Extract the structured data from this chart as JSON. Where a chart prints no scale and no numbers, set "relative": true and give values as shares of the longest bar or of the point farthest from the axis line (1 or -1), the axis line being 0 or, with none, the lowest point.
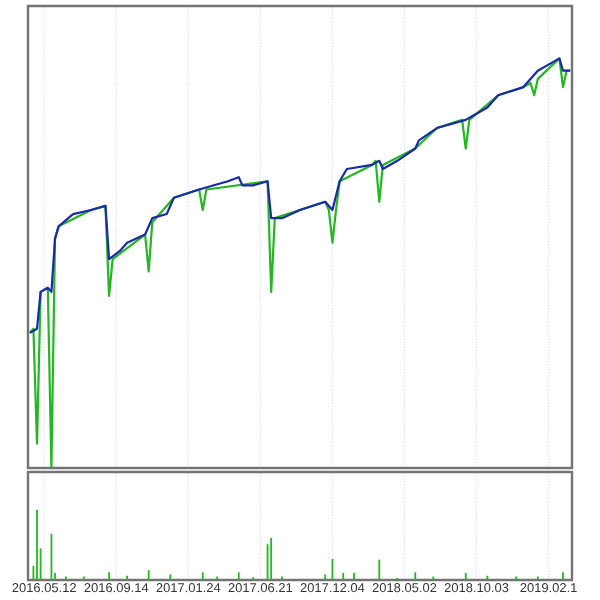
{
  "chart_data": [
    {
      "type": "line",
      "relative": true,
      "tick_labels": false,
      "grid": "x",
      "categories": [
        null,
        null,
        null,
        null,
        "2016.05.12",
        null,
        null,
        null,
        null,
        null,
        null,
        null,
        null,
        null,
        null,
        null,
        null,
        null,
        null,
        null,
        null,
        null,
        null,
        null,
        "2016.09.14",
        null,
        null,
        null,
        null,
        null,
        null,
        null,
        null,
        null,
        null,
        null,
        null,
        null,
        null,
        null,
        null,
        null,
        null,
        null,
        "2017.01.24",
        null,
        null,
        null,
        null,
        null,
        null,
        null,
        null,
        null,
        null,
        null,
        null,
        null,
        null,
        null,
        null,
        null,
        null,
        null,
        "2017.06.21",
        null,
        null,
        null,
        null,
        null,
        null,
        null,
        null,
        null,
        null,
        null,
        null,
        null,
        null,
        null,
        null,
        null,
        null,
        null,
        "2017.12.04",
        null,
        null,
        null,
        null,
        null,
        null,
        null,
        null,
        null,
        null,
        null,
        null,
        null,
        null,
        null,
        null,
        null,
        null,
        null,
        "2018.05.02",
        null,
        null,
        null,
        null,
        null,
        null,
        null,
        null,
        null,
        null,
        null,
        null,
        null,
        null,
        null,
        null,
        null,
        null,
        null,
        "2018.10.03",
        null,
        null,
        null,
        null,
        null,
        null,
        null,
        null,
        null,
        null,
        null,
        null,
        null,
        null,
        null,
        null,
        null,
        null,
        null,
        "2019.02.1",
        null,
        null,
        null,
        null,
        null,
        null
      ],
      "series": [
        {
          "color": "#22b822",
          "values": [
            0.33,
            0.34,
            0.06,
            0.43,
            null,
            0.44,
            0,
            0.56,
            0.59,
            null,
            null,
            null,
            null,
            null,
            null,
            null,
            null,
            0.63,
            null,
            null,
            null,
            0.64,
            0.42,
            0.51,
            null,
            null,
            null,
            null,
            null,
            null,
            null,
            null,
            0.57,
            0.48,
            0.6,
            null,
            null,
            null,
            null,
            null,
            0.66,
            null,
            null,
            null,
            null,
            null,
            null,
            0.68,
            0.63,
            0.68,
            null,
            null,
            null,
            null,
            null,
            null,
            null,
            null,
            null,
            null,
            null,
            null,
            null,
            null,
            null,
            null,
            0.7,
            0.43,
            0.61,
            null,
            null,
            null,
            null,
            null,
            null,
            null,
            null,
            null,
            null,
            null,
            null,
            null,
            0.65,
            0.63,
            0.55,
            0.63,
            0.7,
            null,
            null,
            null,
            null,
            null,
            null,
            null,
            null,
            0.74,
            0.75,
            0.65,
            0.74,
            null,
            null,
            null,
            null,
            null,
            null,
            null,
            null,
            0.78,
            null,
            null,
            null,
            null,
            null,
            0.83,
            null,
            null,
            null,
            null,
            null,
            null,
            0.85,
            0.78,
            0.85,
            null,
            null,
            null,
            null,
            null,
            null,
            null,
            0.91,
            null,
            null,
            null,
            null,
            null,
            null,
            0.93,
            null,
            0.94,
            0.91,
            0.95,
            null,
            null,
            null,
            null,
            null,
            1.0,
            0.93,
            0.97,
            0.97
          ]
        },
        {
          "color": "#1c2aa8",
          "values": [
            0.33,
            null,
            0.34,
            0.43,
            null,
            0.44,
            0.43,
            0.56,
            0.59,
            null,
            null,
            null,
            0.62,
            null,
            null,
            null,
            null,
            0.63,
            null,
            null,
            null,
            0.64,
            0.51,
            null,
            null,
            0.53,
            null,
            0.55,
            null,
            null,
            null,
            null,
            0.57,
            null,
            0.61,
            null,
            null,
            null,
            0.62,
            null,
            0.66,
            null,
            null,
            null,
            null,
            null,
            null,
            0.68,
            null,
            null,
            null,
            null,
            null,
            null,
            null,
            0.7,
            null,
            null,
            0.71,
            0.69,
            null,
            null,
            0.69,
            null,
            null,
            null,
            0.7,
            0.61,
            null,
            null,
            0.61,
            null,
            null,
            null,
            null,
            0.63,
            null,
            null,
            null,
            null,
            null,
            null,
            0.65,
            null,
            0.63,
            null,
            0.7,
            null,
            0.73,
            null,
            null,
            null,
            null,
            null,
            null,
            0.74,
            null,
            0.75,
            0.73,
            null,
            null,
            null,
            0.75,
            null,
            null,
            null,
            null,
            0.78,
            0.8,
            null,
            null,
            null,
            null,
            0.83,
            null,
            null,
            null,
            null,
            null,
            null,
            null,
            0.85,
            null,
            0.86,
            null,
            null,
            null,
            0.88,
            null,
            null,
            0.91,
            null,
            null,
            null,
            null,
            null,
            null,
            0.93,
            null,
            null,
            null,
            0.97,
            null,
            null,
            null,
            null,
            null,
            1.0,
            0.97,
            null,
            0.97
          ]
        }
      ]
    },
    {
      "type": "bar",
      "relative": true,
      "tick_labels": "x",
      "grid": "x",
      "color": "#22b822",
      "categories": [
        null,
        null,
        null,
        null,
        "2016.05.12",
        null,
        null,
        null,
        null,
        null,
        null,
        null,
        null,
        null,
        null,
        null,
        null,
        null,
        null,
        null,
        null,
        null,
        null,
        null,
        "2016.09.14",
        null,
        null,
        null,
        null,
        null,
        null,
        null,
        null,
        null,
        null,
        null,
        null,
        null,
        null,
        null,
        null,
        null,
        null,
        null,
        "2017.01.24",
        null,
        null,
        null,
        null,
        null,
        null,
        null,
        null,
        null,
        null,
        null,
        null,
        null,
        null,
        null,
        null,
        null,
        null,
        null,
        "2017.06.21",
        null,
        null,
        null,
        null,
        null,
        null,
        null,
        null,
        null,
        null,
        null,
        null,
        null,
        null,
        null,
        null,
        null,
        null,
        null,
        "2017.12.04",
        null,
        null,
        null,
        null,
        null,
        null,
        null,
        null,
        null,
        null,
        null,
        null,
        null,
        null,
        null,
        null,
        null,
        null,
        null,
        "2018.05.02",
        null,
        null,
        null,
        null,
        null,
        null,
        null,
        null,
        null,
        null,
        null,
        null,
        null,
        null,
        null,
        null,
        null,
        null,
        null,
        "2018.10.03",
        null,
        null,
        null,
        null,
        null,
        null,
        null,
        null,
        null,
        null,
        null,
        null,
        null,
        null,
        null,
        null,
        null,
        null,
        null,
        "2019.02.1",
        null,
        null,
        null,
        null,
        null,
        null
      ],
      "values": [
        null,
        0.2,
        1.0,
        0.45,
        null,
        null,
        0.66,
        0.1,
        null,
        null,
        0.05,
        null,
        null,
        null,
        null,
        0.05,
        null,
        null,
        null,
        null,
        null,
        null,
        0.11,
        null,
        null,
        null,
        null,
        0.06,
        null,
        null,
        null,
        null,
        null,
        0.14,
        null,
        null,
        null,
        null,
        null,
        0.08,
        null,
        null,
        null,
        null,
        null,
        null,
        null,
        null,
        0.11,
        null,
        null,
        null,
        0.05,
        null,
        null,
        null,
        null,
        null,
        0.11,
        null,
        null,
        null,
        0.04,
        null,
        null,
        null,
        0.51,
        0.6,
        null,
        null,
        0.05,
        null,
        null,
        null,
        null,
        null,
        null,
        null,
        null,
        null,
        null,
        null,
        0.08,
        null,
        0.3,
        null,
        null,
        0.1,
        null,
        null,
        0.1,
        null,
        null,
        null,
        null,
        null,
        null,
        0.29,
        null,
        null,
        null,
        null,
        0.03,
        null,
        null,
        null,
        null,
        0.11,
        null,
        null,
        null,
        null,
        0.05,
        null,
        null,
        null,
        null,
        null,
        null,
        null,
        null,
        0.1,
        null,
        null,
        null,
        null,
        null,
        0.06,
        null,
        null,
        null,
        null,
        null,
        null,
        null,
        0.05,
        null,
        null,
        null,
        null,
        null,
        0.05,
        null,
        null,
        null,
        null,
        null,
        null,
        0.11,
        null,
        null
      ]
    }
  ]
}
